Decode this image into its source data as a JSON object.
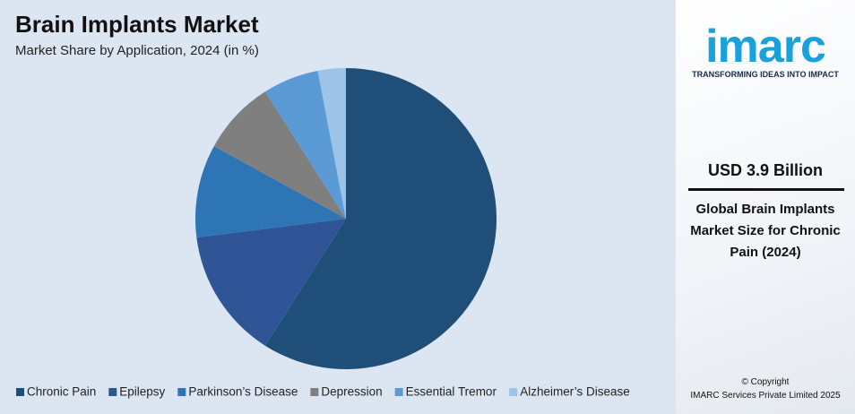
{
  "chart_data": {
    "type": "pie",
    "title": "Brain Implants Market",
    "subtitle": "Market Share by Application, 2024 (in %)",
    "categories": [
      "Chronic Pain",
      "Epilepsy",
      "Parkinson’s Disease",
      "Depression",
      "Essential Tremor",
      "Alzheimer’s Disease"
    ],
    "values": [
      59,
      14,
      10,
      8,
      6,
      3
    ],
    "colors": [
      "#1f4e79",
      "#2f5597",
      "#2e75b6",
      "#7f7f7f",
      "#5b9bd5",
      "#9dc3e6"
    ]
  },
  "brand": {
    "logo": "imarc",
    "tagline": "TRANSFORMING IDEAS INTO IMPACT"
  },
  "highlight": {
    "value": "USD 3.9 Billion",
    "caption": "Global Brain Implants Market Size for Chronic Pain (2024)"
  },
  "footer": {
    "copyright": "© Copyright",
    "owner": "IMARC Services Private Limited 2025"
  }
}
